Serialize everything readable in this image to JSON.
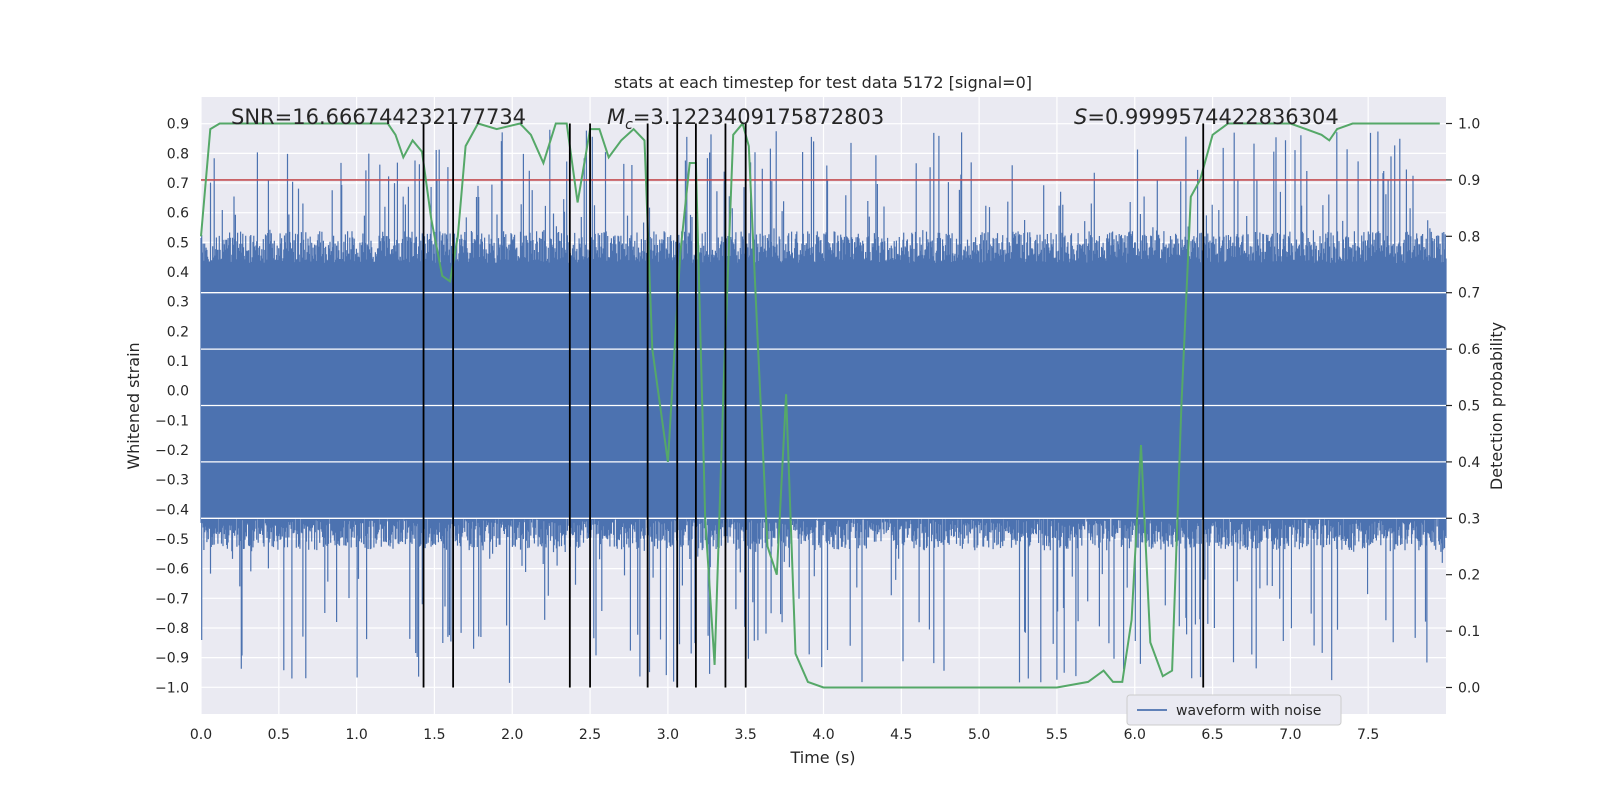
{
  "chart_data": {
    "type": "line",
    "title": "stats at each timestep for test data 5172 [signal=0]",
    "xlabel": "Time (s)",
    "ylabel": "Whitened strain",
    "ylabel_right": "Detection probability",
    "xlim": [
      0,
      8
    ],
    "ylim": [
      -1.09,
      0.99
    ],
    "ylim_right": [
      -0.047,
      1.047
    ],
    "xticks": [
      "0.0",
      "0.5",
      "1.0",
      "1.5",
      "2.0",
      "2.5",
      "3.0",
      "3.5",
      "4.0",
      "4.5",
      "5.0",
      "5.5",
      "6.0",
      "6.5",
      "7.0",
      "7.5"
    ],
    "yticks": [
      "0.9",
      "0.8",
      "0.7",
      "0.6",
      "0.5",
      "0.4",
      "0.3",
      "0.2",
      "0.1",
      "0.0",
      "−0.1",
      "−0.2",
      "−0.3",
      "−0.4",
      "−0.5",
      "−0.6",
      "−0.7",
      "−0.8",
      "−0.9",
      "−1.0"
    ],
    "yticks_right": [
      "1.0",
      "0.9",
      "0.8",
      "0.7",
      "0.6",
      "0.5",
      "0.4",
      "0.3",
      "0.2",
      "0.1",
      "0.0"
    ],
    "grid": true,
    "legend": {
      "entries": [
        "waveform with noise"
      ],
      "placement": "lower-right"
    },
    "annotations": {
      "snr": "SNR=16.666744232177734",
      "mc_symbol": "M",
      "mc_sub": "c",
      "mc_value": "=3.1223409175872803",
      "s_symbol": "S",
      "s_value": "=0.9999574422836304"
    },
    "colors": {
      "waveform": "#4c72b0",
      "probability": "#55a868",
      "threshold": "#c44e52",
      "markers": "#000000",
      "background": "#eaeaf2",
      "grid": "#ffffff"
    },
    "series": [
      {
        "name": "waveform with noise",
        "kind": "noise-band",
        "x_range": [
          0,
          8
        ],
        "core_range": [
          -0.43,
          0.43
        ],
        "peak_max": 0.88,
        "peak_min": -0.99
      }
    ],
    "probability": {
      "x": [
        0.0,
        0.06,
        0.12,
        0.25,
        0.5,
        0.75,
        1.0,
        1.2,
        1.25,
        1.3,
        1.36,
        1.42,
        1.48,
        1.55,
        1.6,
        1.65,
        1.7,
        1.78,
        1.9,
        2.05,
        2.12,
        2.2,
        2.28,
        2.35,
        2.42,
        2.5,
        2.56,
        2.62,
        2.7,
        2.78,
        2.85,
        2.9,
        3.0,
        3.08,
        3.14,
        3.18,
        3.24,
        3.3,
        3.36,
        3.42,
        3.48,
        3.52,
        3.58,
        3.64,
        3.7,
        3.76,
        3.82,
        3.9,
        4.0,
        4.1,
        4.5,
        5.0,
        5.5,
        5.7,
        5.8,
        5.86,
        5.92,
        5.98,
        6.04,
        6.1,
        6.18,
        6.24,
        6.3,
        6.36,
        6.42,
        6.5,
        6.6,
        6.8,
        7.0,
        7.1,
        7.2,
        7.25,
        7.3,
        7.4,
        7.6,
        7.8,
        7.96
      ],
      "y": [
        0.8,
        0.99,
        1.0,
        1.0,
        1.0,
        1.0,
        1.0,
        1.0,
        0.98,
        0.94,
        0.97,
        0.95,
        0.83,
        0.73,
        0.72,
        0.8,
        0.96,
        1.0,
        0.99,
        1.0,
        0.98,
        0.93,
        1.0,
        1.0,
        0.86,
        0.99,
        0.99,
        0.94,
        0.97,
        0.99,
        0.97,
        0.6,
        0.4,
        0.77,
        0.93,
        0.93,
        0.3,
        0.04,
        0.55,
        0.98,
        1.0,
        0.96,
        0.6,
        0.25,
        0.2,
        0.52,
        0.06,
        0.01,
        0.0,
        0.0,
        0.0,
        0.0,
        0.0,
        0.01,
        0.03,
        0.01,
        0.01,
        0.12,
        0.43,
        0.08,
        0.02,
        0.03,
        0.5,
        0.87,
        0.9,
        0.98,
        1.0,
        1.0,
        1.0,
        0.99,
        0.98,
        0.97,
        0.99,
        1.0,
        1.0,
        1.0,
        1.0
      ]
    },
    "threshold_right": 0.9,
    "event_lines": [
      1.43,
      1.62,
      2.37,
      2.5,
      2.87,
      3.06,
      3.18,
      3.37,
      3.5,
      6.44
    ]
  }
}
